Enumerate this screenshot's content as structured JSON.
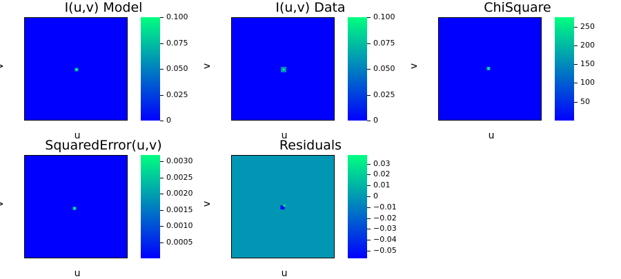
{
  "chart_data": [
    {
      "type": "heatmap",
      "title": "I(u,v) Model",
      "xlabel": "u",
      "ylabel": "v",
      "colormap": [
        "#0000ff",
        "#00ff80"
      ],
      "background": "#0000ff",
      "clim": [
        0,
        0.1
      ],
      "colorbar_ticks": [
        "0",
        "0.025",
        "0.050",
        "0.075",
        "0.100"
      ],
      "colorbar_tick_values": [
        0,
        0.025,
        0.05,
        0.075,
        0.1
      ],
      "spot": {
        "u": 0.5,
        "v": 0.5,
        "value": 0.1,
        "shape": "point"
      }
    },
    {
      "type": "heatmap",
      "title": "I(u,v) Data",
      "xlabel": "u",
      "ylabel": "v",
      "colormap": [
        "#0000ff",
        "#00ff80"
      ],
      "background": "#0000ff",
      "clim": [
        0,
        0.1
      ],
      "colorbar_ticks": [
        "0",
        "0.025",
        "0.050",
        "0.075",
        "0.100"
      ],
      "colorbar_tick_values": [
        0,
        0.025,
        0.05,
        0.075,
        0.1
      ],
      "spot": {
        "u": 0.5,
        "v": 0.5,
        "value": 0.09,
        "shape": "blob"
      }
    },
    {
      "type": "heatmap",
      "title": "ChiSquare",
      "xlabel": "u",
      "ylabel": "v",
      "colormap": [
        "#0000ff",
        "#00ff80"
      ],
      "background": "#0000ff",
      "clim": [
        0,
        275
      ],
      "colorbar_ticks": [
        "50",
        "100",
        "150",
        "200",
        "250"
      ],
      "colorbar_tick_values": [
        50,
        100,
        150,
        200,
        250
      ],
      "spot": {
        "u": 0.48,
        "v": 0.49,
        "value": 270,
        "shape": "point"
      }
    },
    {
      "type": "heatmap",
      "title": "SquaredError(u,v)",
      "xlabel": "u",
      "ylabel": "v",
      "colormap": [
        "#0000ff",
        "#00ff80"
      ],
      "background": "#0000ff",
      "clim": [
        0,
        0.0032
      ],
      "colorbar_ticks": [
        "0.0005",
        "0.0010",
        "0.0015",
        "0.0020",
        "0.0025",
        "0.0030"
      ],
      "colorbar_tick_values": [
        0.0005,
        0.001,
        0.0015,
        0.002,
        0.0025,
        0.003
      ],
      "spot": {
        "u": 0.48,
        "v": 0.51,
        "value": 0.0031,
        "shape": "point"
      }
    },
    {
      "type": "heatmap",
      "title": "Residuals",
      "xlabel": "u",
      "ylabel": "v",
      "colormap": [
        "#0000ff",
        "#00ff80"
      ],
      "background": "#0096b4",
      "clim": [
        -0.057,
        0.038
      ],
      "colorbar_ticks": [
        "0.03",
        "0.02",
        "0.01",
        "0",
        "−0.01",
        "−0.02",
        "−0.03",
        "−0.04",
        "−0.05"
      ],
      "colorbar_tick_values": [
        0.03,
        0.02,
        0.01,
        0,
        -0.01,
        -0.02,
        -0.03,
        -0.04,
        -0.05
      ],
      "spot": {
        "u": 0.49,
        "v": 0.5,
        "value": -0.055,
        "shape": "dipole"
      }
    }
  ]
}
